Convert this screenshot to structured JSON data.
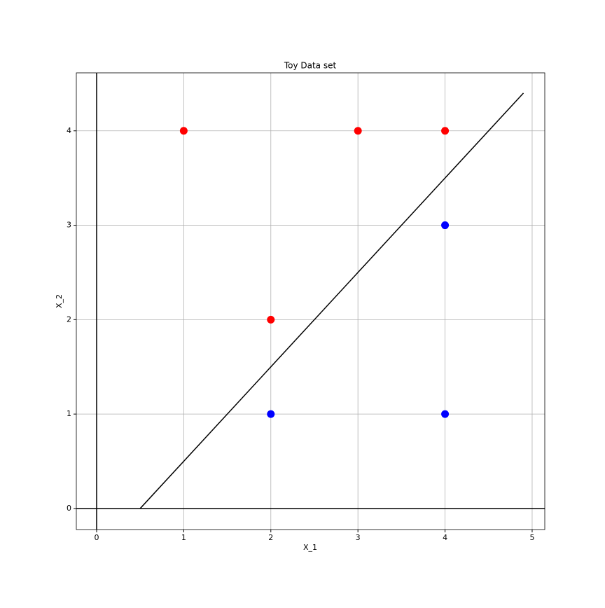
{
  "chart_data": {
    "type": "scatter",
    "title": "Toy Data set",
    "x_label": "X_1",
    "y_label": "X_2",
    "series": [
      {
        "color": "#ff0000",
        "x": [
          1,
          3,
          4,
          2
        ],
        "y": [
          4,
          4,
          4,
          2
        ]
      },
      {
        "color": "#0000ff",
        "x": [
          2,
          4,
          4
        ],
        "y": [
          1,
          1,
          3
        ]
      }
    ],
    "lines": [
      {
        "color": "#000000",
        "x": [
          0.5,
          4.9
        ],
        "y": [
          0,
          4.4
        ]
      }
    ],
    "hlines": [
      0
    ],
    "vlines": [
      0
    ],
    "xlim": [
      -0.233,
      5.145
    ],
    "ylim": [
      -0.223,
      4.614
    ],
    "xticks": [
      0,
      1,
      2,
      3,
      4,
      5
    ],
    "yticks": [
      0,
      1,
      2,
      3,
      4
    ],
    "grid": true
  }
}
